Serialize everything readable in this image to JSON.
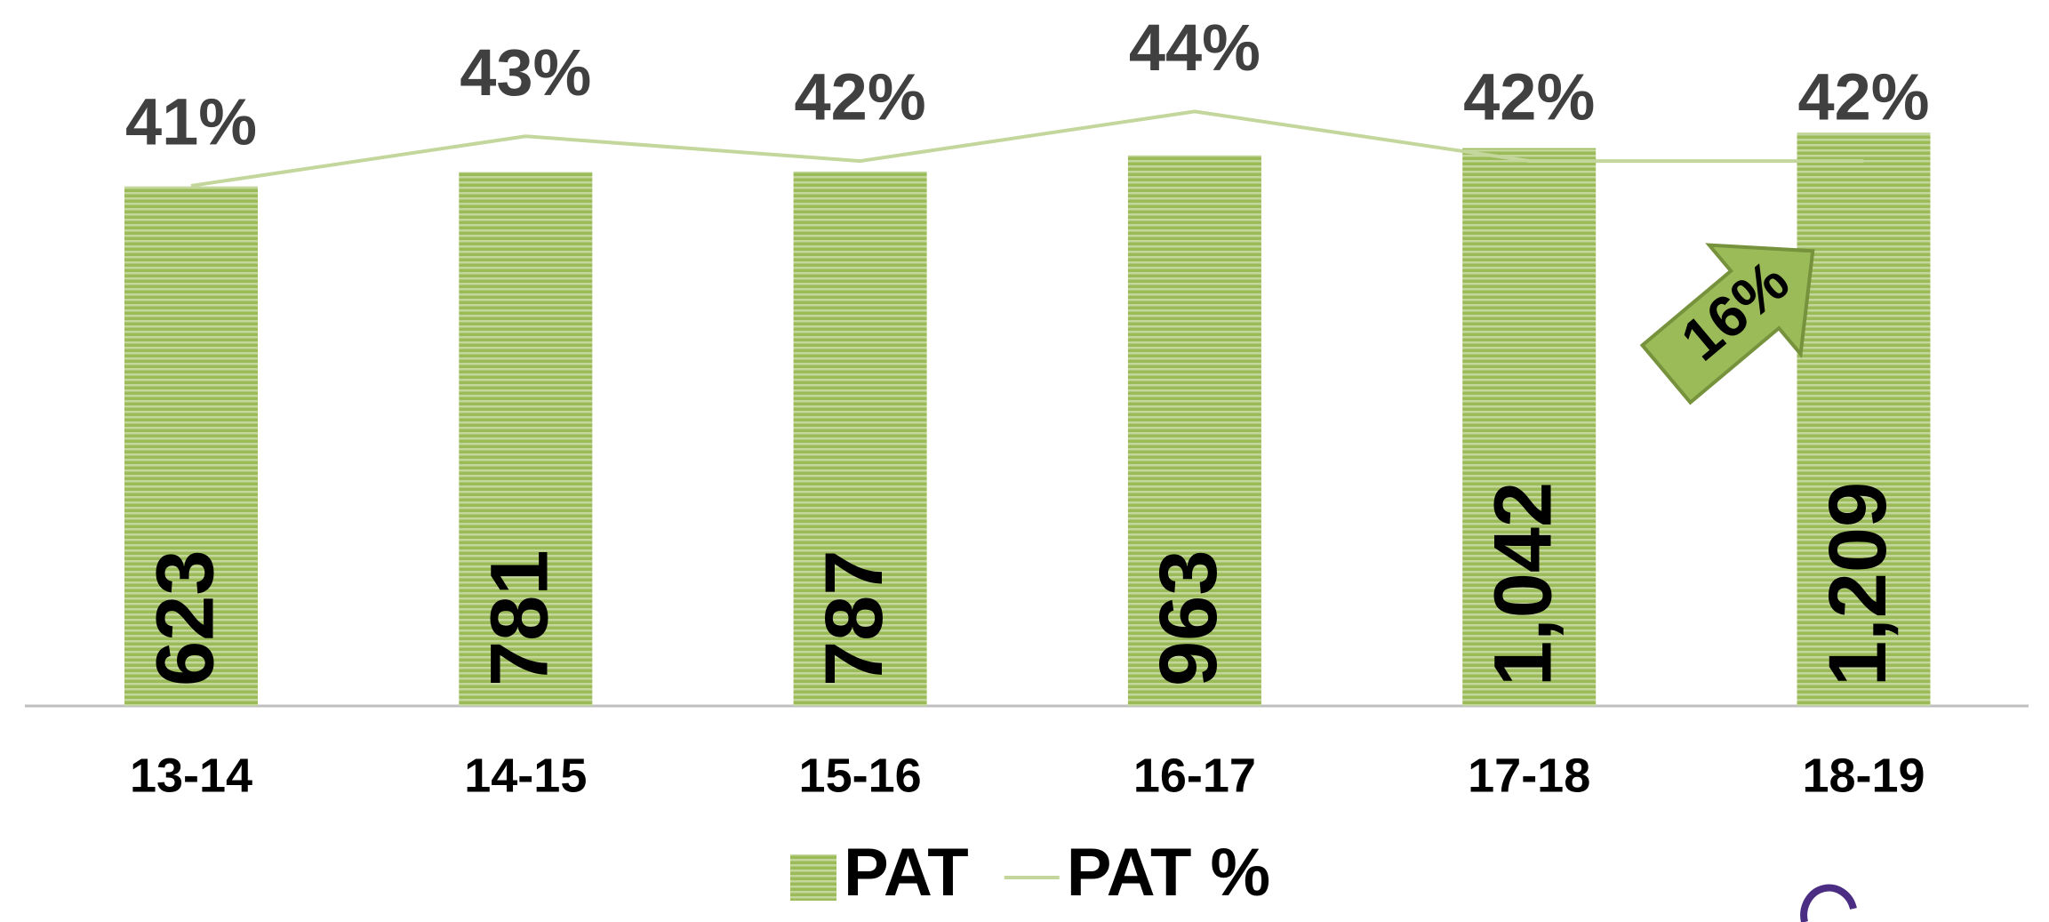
{
  "chart_data": {
    "type": "bar",
    "categories": [
      "13-14",
      "14-15",
      "15-16",
      "16-17",
      "17-18",
      "18-19"
    ],
    "series": [
      {
        "name": "PAT",
        "type": "bar",
        "color": "#9bbb59",
        "values": [
          623,
          781,
          787,
          963,
          1042,
          1209
        ],
        "value_labels": [
          "623",
          "781",
          "787",
          "963",
          "1,042",
          "1,209"
        ]
      },
      {
        "name": "PAT %",
        "type": "line",
        "axis": "y2",
        "color": "#c3d69b",
        "values": [
          41,
          43,
          42,
          44,
          42,
          42
        ],
        "value_labels": [
          "41%",
          "43%",
          "42%",
          "44%",
          "42%",
          "42%"
        ]
      }
    ],
    "ylim": [
      -5050,
      2660
    ],
    "y2lim": [
      20,
      48.5
    ],
    "annotations": [
      "16%"
    ],
    "legend": "bottom"
  }
}
